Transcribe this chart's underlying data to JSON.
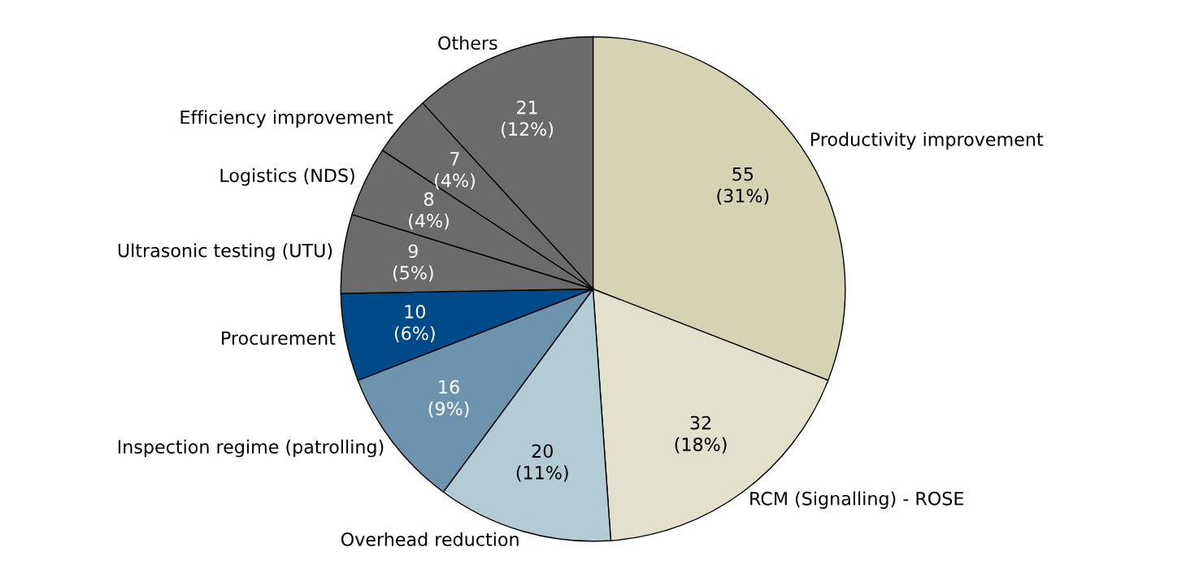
{
  "chart_data": {
    "type": "pie",
    "categories": [
      "Productivity improvement",
      "RCM (Signalling) - ROSE",
      "Overhead reduction",
      "Inspection regime (patrolling)",
      "Procurement",
      "Ultrasonic testing (UTU)",
      "Logistics (NDS)",
      "Efficiency improvement",
      "Others"
    ],
    "values": [
      55,
      32,
      20,
      16,
      10,
      9,
      8,
      7,
      21
    ],
    "colors": [
      "#d6d3b4",
      "#e3e1cc",
      "#b3cbd5",
      "#6d93ad",
      "#004a8a",
      "#6b6b6b",
      "#6b6b6b",
      "#6b6b6b",
      "#6b6b6b"
    ],
    "value_labels": [
      "55\n(31%)",
      "32\n(18%)",
      "20\n(11%)",
      "16\n(9%)",
      "10\n(6%)",
      "9\n(5%)",
      "8\n(4%)",
      "7\n(4%)",
      "21\n(12%)"
    ]
  }
}
